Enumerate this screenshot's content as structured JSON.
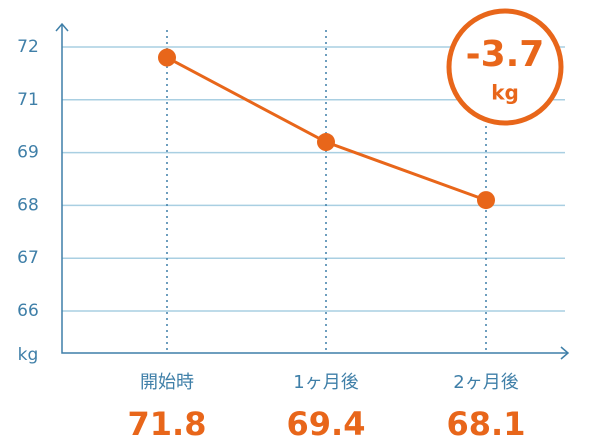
{
  "chart_data": {
    "type": "line",
    "y_label": "kg",
    "categories": [
      "開始時",
      "1ヶ月後",
      "2ヶ月後"
    ],
    "values": [
      71.8,
      69.4,
      68.1
    ],
    "color": "#e8661a",
    "yticks": [
      72,
      71,
      69,
      68,
      67,
      66
    ],
    "grid": true,
    "annotation": {
      "value": -3.7,
      "unit": "kg"
    }
  }
}
